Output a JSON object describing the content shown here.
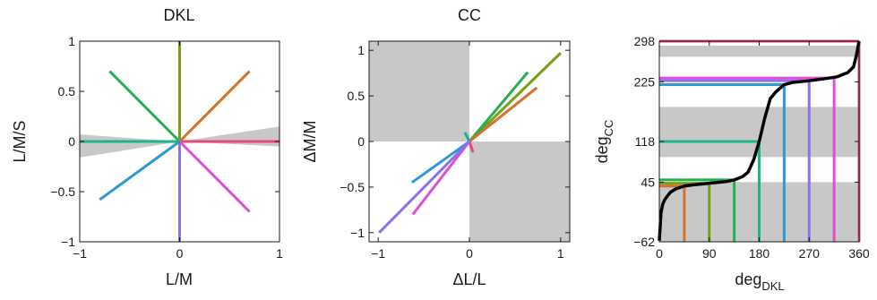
{
  "colors": {
    "green": "#22b14c",
    "olive": "#76a015",
    "orange": "#d6702a",
    "pink": "#e9487c",
    "magenta": "#dc4fd6",
    "purple": "#8f6ef2",
    "blue": "#2c9ad0",
    "teal": "#1db48c",
    "gray": "#c8c8c8"
  },
  "chart_data": [
    {
      "type": "line",
      "title": "DKL",
      "xlabel": "L/M",
      "ylabel": "L/M/S",
      "xlim": [
        -1,
        1
      ],
      "ylim": [
        -1,
        1
      ],
      "x_ticks": [
        -1,
        0,
        1
      ],
      "x_tick_labels": [
        "−1",
        "0",
        "1"
      ],
      "y_ticks": [
        -1,
        -0.5,
        0,
        0.5,
        1
      ],
      "y_tick_labels": [
        "−1",
        "−0.5",
        "0",
        "0.5",
        "1"
      ],
      "gray_region": {
        "x_left": -1,
        "y_left": [
          -0.16,
          0.07
        ],
        "x_right": 1,
        "y_right": [
          -0.05,
          0.15
        ]
      },
      "series": [
        {
          "color": "green",
          "points": [
            [
              0,
              0
            ],
            [
              -0.7,
              0.7
            ]
          ]
        },
        {
          "color": "olive",
          "points": [
            [
              0,
              0
            ],
            [
              0,
              1
            ]
          ]
        },
        {
          "color": "orange",
          "points": [
            [
              0,
              0
            ],
            [
              0.7,
              0.7
            ]
          ]
        },
        {
          "color": "pink",
          "points": [
            [
              0,
              0
            ],
            [
              1,
              0
            ]
          ]
        },
        {
          "color": "magenta",
          "points": [
            [
              0,
              0
            ],
            [
              0.7,
              -0.7
            ]
          ]
        },
        {
          "color": "purple",
          "points": [
            [
              0,
              0
            ],
            [
              0,
              -1
            ]
          ]
        },
        {
          "color": "blue",
          "points": [
            [
              0,
              0
            ],
            [
              -0.8,
              -0.58
            ]
          ]
        },
        {
          "color": "teal",
          "points": [
            [
              0,
              0
            ],
            [
              -1,
              0
            ]
          ]
        }
      ]
    },
    {
      "type": "line",
      "title": "CC",
      "xlabel": "ΔL/L",
      "ylabel": "ΔM/M",
      "xlim": [
        -1.1,
        1.1
      ],
      "ylim": [
        -1.1,
        1.1
      ],
      "x_ticks": [
        -1,
        0,
        1
      ],
      "x_tick_labels": [
        "−1",
        "0",
        "1"
      ],
      "y_ticks": [
        -1,
        -0.5,
        0,
        0.5,
        1
      ],
      "y_tick_labels": [
        "−1",
        "−0.5",
        "0",
        "0.5",
        "1"
      ],
      "gray_regions": [
        {
          "x": [
            -1.1,
            0
          ],
          "y": [
            0,
            1.1
          ]
        },
        {
          "x": [
            0,
            1.1
          ],
          "y": [
            -1.1,
            0
          ]
        }
      ],
      "series": [
        {
          "color": "olive",
          "points": [
            [
              0,
              0
            ],
            [
              1.0,
              0.97
            ]
          ]
        },
        {
          "color": "green",
          "points": [
            [
              0,
              0
            ],
            [
              0.64,
              0.76
            ]
          ]
        },
        {
          "color": "orange",
          "points": [
            [
              0,
              0
            ],
            [
              0.74,
              0.59
            ]
          ]
        },
        {
          "color": "teal",
          "points": [
            [
              0,
              0
            ],
            [
              -0.05,
              0.1
            ]
          ]
        },
        {
          "color": "pink",
          "points": [
            [
              0,
              0
            ],
            [
              0.04,
              -0.12
            ]
          ]
        },
        {
          "color": "blue",
          "points": [
            [
              0,
              0
            ],
            [
              -0.63,
              -0.45
            ]
          ]
        },
        {
          "color": "magenta",
          "points": [
            [
              0,
              0
            ],
            [
              -0.62,
              -0.8
            ]
          ]
        },
        {
          "color": "purple",
          "points": [
            [
              0,
              0
            ],
            [
              -0.99,
              -1.0
            ]
          ]
        }
      ]
    },
    {
      "type": "line",
      "xlabel": "deg",
      "xlabel_sub": "DKL",
      "ylabel": "deg",
      "ylabel_sub": "CC",
      "xlim": [
        0,
        360
      ],
      "ylim": [
        -62,
        298
      ],
      "x_ticks": [
        0,
        90,
        180,
        270,
        360
      ],
      "x_tick_labels": [
        "0",
        "90",
        "180",
        "270",
        "360"
      ],
      "y_ticks": [
        -62,
        45,
        118,
        225,
        298
      ],
      "y_tick_labels": [
        "−62",
        "45",
        "118",
        "225",
        "298"
      ],
      "gray_bands": [
        [
          270,
          290
        ],
        [
          90,
          180
        ],
        [
          -62,
          45
        ]
      ],
      "series": [
        {
          "color": "orange",
          "x": [
            45,
            45
          ],
          "y": [
            -62,
            38
          ]
        },
        {
          "color": "olive",
          "x": [
            90,
            90
          ],
          "y": [
            -62,
            43
          ]
        },
        {
          "color": "green",
          "x": [
            135,
            135
          ],
          "y": [
            -62,
            49
          ]
        },
        {
          "color": "teal",
          "x": [
            180,
            180
          ],
          "y": [
            -62,
            118
          ]
        },
        {
          "color": "blue",
          "x": [
            225,
            225
          ],
          "y": [
            -62,
            220
          ]
        },
        {
          "color": "purple",
          "x": [
            270,
            270
          ],
          "y": [
            -62,
            227
          ]
        },
        {
          "color": "magenta",
          "x": [
            315,
            315
          ],
          "y": [
            -62,
            232
          ]
        },
        {
          "color": "pink",
          "x": [
            360,
            360
          ],
          "y": [
            -62,
            298
          ]
        },
        {
          "color": "orange",
          "x": [
            0,
            45
          ],
          "y": [
            38,
            38
          ]
        },
        {
          "color": "olive",
          "x": [
            0,
            90
          ],
          "y": [
            43,
            43
          ]
        },
        {
          "color": "green",
          "x": [
            0,
            135
          ],
          "y": [
            49,
            49
          ]
        },
        {
          "color": "teal",
          "x": [
            0,
            180
          ],
          "y": [
            118,
            118
          ]
        },
        {
          "color": "blue",
          "x": [
            0,
            225
          ],
          "y": [
            220,
            220
          ]
        },
        {
          "color": "purple",
          "x": [
            0,
            270
          ],
          "y": [
            227,
            227
          ]
        },
        {
          "color": "magenta",
          "x": [
            0,
            315
          ],
          "y": [
            232,
            232
          ]
        },
        {
          "color": "pink",
          "x": [
            0,
            360
          ],
          "y": [
            298,
            298
          ]
        },
        {
          "color": "black",
          "x": [
            0,
            3,
            6,
            10,
            20,
            30,
            45,
            60,
            90,
            120,
            135,
            150,
            160,
            170,
            180,
            190,
            200,
            210,
            225,
            240,
            270,
            300,
            320,
            340,
            350,
            355,
            360
          ],
          "y": [
            -60,
            -10,
            5,
            14,
            27,
            33,
            38,
            40,
            43,
            46,
            49,
            55,
            63,
            85,
            118,
            160,
            195,
            207,
            220,
            224,
            227,
            231,
            234,
            242,
            252,
            272,
            298
          ]
        }
      ]
    }
  ]
}
